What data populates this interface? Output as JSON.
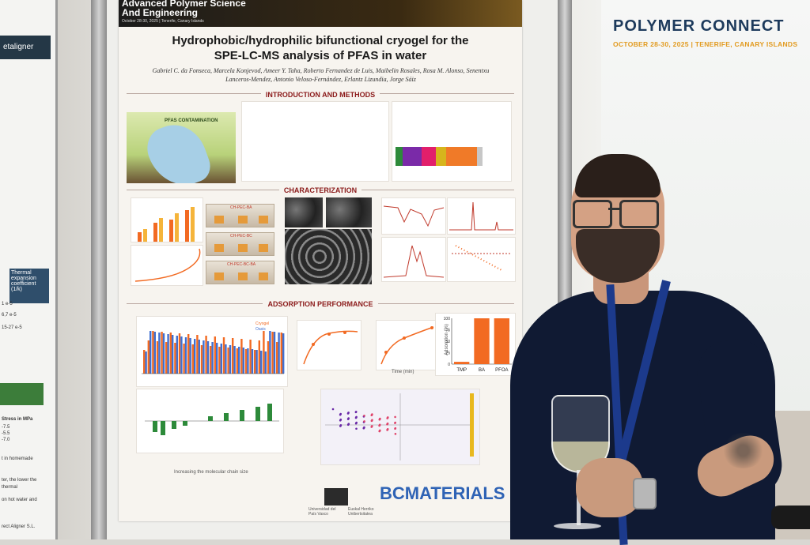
{
  "brand": {
    "name": "POLYMER CONNECT",
    "subtitle": "OCTOBER 28-30, 2025 | TENERIFE, CANARY ISLANDS"
  },
  "left_poster": {
    "header": "etaligner",
    "table_header": "Thermal expansion coefficient (1/k)",
    "values": [
      "1 e-5",
      "6,7 e-5",
      "15-27 e-5"
    ],
    "stress_label": "Stress in MPa",
    "stress_values": [
      "-7.5",
      "-5.5",
      "-7.0"
    ],
    "notes": [
      "t in homemade",
      "ter, the lower the",
      "thermal",
      "on hot water and",
      "rect Aligner S.L."
    ]
  },
  "poster": {
    "journal_title_line1": "Advanced Polymer Science",
    "journal_title_line2": "And Engineering",
    "journal_date": "October 28-30, 2025 | Tenerife, Canary Islands",
    "title_line1": "Hydrophobic/hydrophilic bifunctional cryogel for the",
    "title_line2": "SPE-LC-MS analysis of PFAS in water",
    "authors": "Gabriel C. da Fonseca, Marcela Konjevod, Ameer Y. Taha, Roberto Fernandez de Luis, Maibelin Rosales, Rosa M. Alonso, Senentxu Lanceros-Mendez, Antonio Veloso-Fernández, Erlantz Lizundia, Jorge Sáiz",
    "sections": {
      "intro": "INTRODUCTION AND METHODS",
      "characterization": "CHARACTERIZATION",
      "adsorption": "ADSORPTION PERFORMANCE"
    },
    "pfas_label": "PFAS CONTAMINATION",
    "sample_labels": [
      "CH-PEC-BA",
      "CH-PEC-BC",
      "CH-PEC-BC-BA"
    ],
    "adsorption_chart": {
      "ylabel": "Adsorption (%)",
      "categories": [
        "TMP",
        "BA",
        "PFOA"
      ],
      "values": [
        5,
        100,
        100
      ],
      "yticks": [
        "0",
        "25",
        "50",
        "75",
        "100"
      ]
    },
    "legend": [
      "Cryogel",
      "Oasis"
    ],
    "x_axis_label": "Increasing the molecular chain size",
    "time_label": "Time (min)",
    "logos": {
      "university": "Universidad del País Vasco",
      "university2": "Euskal Herriko Unibertsitatea",
      "bcmaterials": "BCMATERIALS"
    }
  },
  "colors": {
    "brand_blue": "#1d3a5c",
    "brand_orange": "#e29a1e",
    "section_red": "#8b1a1a",
    "bar_orange": "#f26a22",
    "bar_blue": "#3f6fd1",
    "lanyard": "#1c3a8c"
  }
}
